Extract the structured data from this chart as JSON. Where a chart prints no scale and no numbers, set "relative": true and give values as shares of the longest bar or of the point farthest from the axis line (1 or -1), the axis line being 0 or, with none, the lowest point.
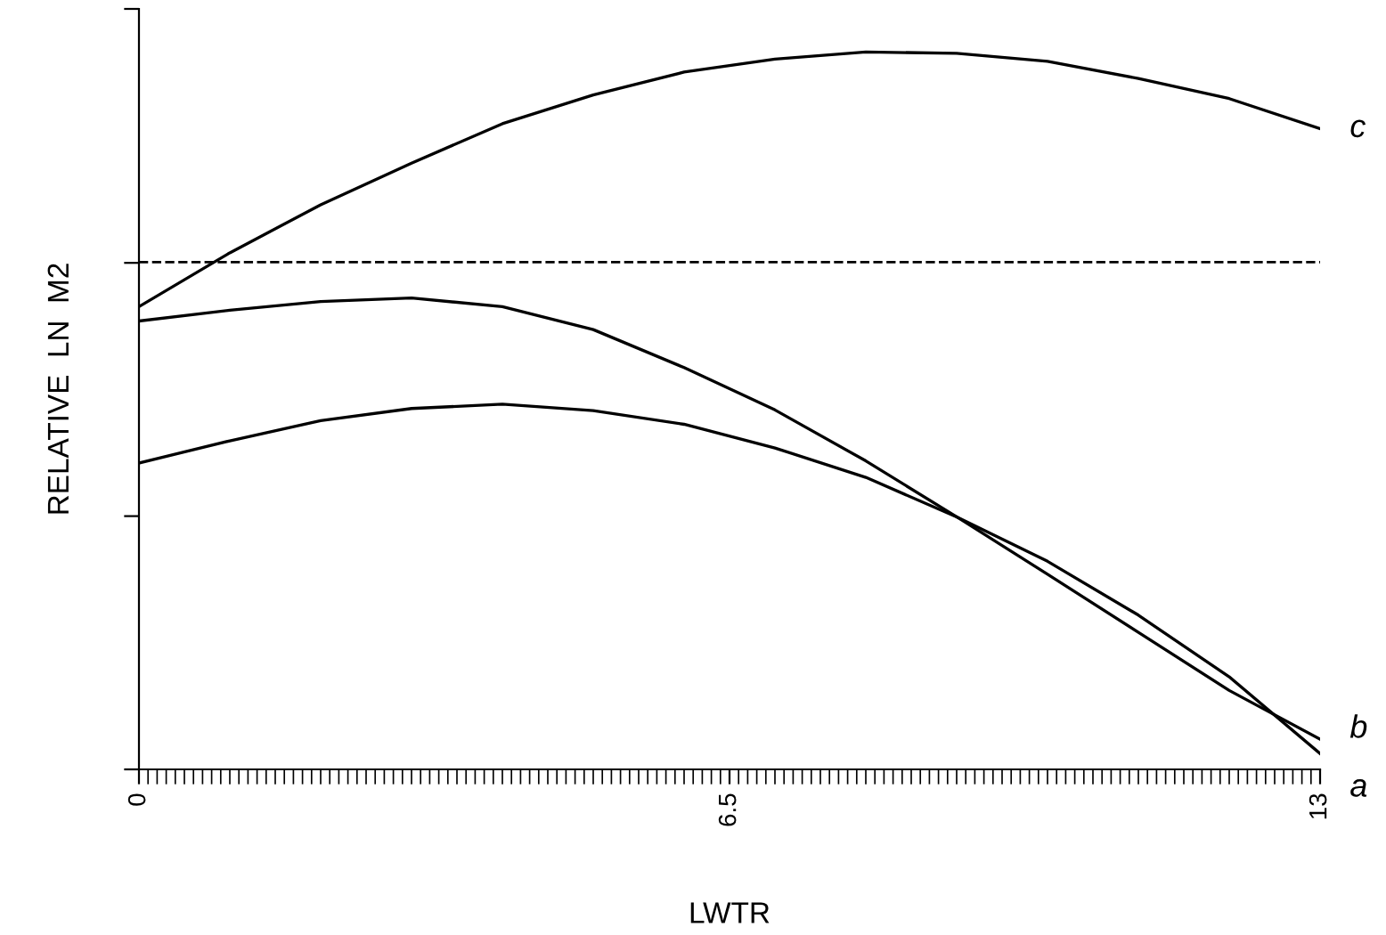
{
  "chart_data": {
    "type": "line",
    "xlabel": "LWTR",
    "ylabel": "RELATIVE  LN  M2",
    "relative": true,
    "xlim": [
      0,
      13
    ],
    "xticks": [
      0,
      6.5,
      13
    ],
    "tick_labels": "x",
    "grid": false,
    "marker": "none",
    "line_style": "solid",
    "series": [
      {
        "name": "c",
        "color": "#000000",
        "x": [
          0,
          1,
          2,
          3,
          4,
          5,
          6,
          7,
          8,
          9,
          10,
          11,
          12,
          13
        ],
        "values": [
          0.645,
          0.72,
          0.787,
          0.845,
          0.9,
          0.94,
          0.972,
          0.99,
          1,
          0.998,
          0.987,
          0.963,
          0.935,
          0.893
        ]
      },
      {
        "name": "b",
        "color": "#000000",
        "x": [
          0,
          1,
          2,
          3,
          4,
          5,
          6,
          7,
          8,
          9,
          10,
          11,
          12,
          13
        ],
        "values": [
          0.625,
          0.64,
          0.652,
          0.657,
          0.645,
          0.613,
          0.56,
          0.501,
          0.43,
          0.352,
          0.272,
          0.191,
          0.11,
          0.042
        ]
      },
      {
        "name": "a",
        "color": "#000000",
        "x": [
          0,
          1,
          2,
          3,
          4,
          5,
          6,
          7,
          8,
          9,
          10,
          11,
          12,
          13
        ],
        "values": [
          0.427,
          0.458,
          0.486,
          0.503,
          0.509,
          0.5,
          0.481,
          0.448,
          0.407,
          0.352,
          0.29,
          0.215,
          0.129,
          0.022
        ]
      }
    ],
    "ref_lines": [
      {
        "axis": "y",
        "value": 0.707,
        "color": "#000000",
        "line_style": "dashed"
      }
    ]
  }
}
